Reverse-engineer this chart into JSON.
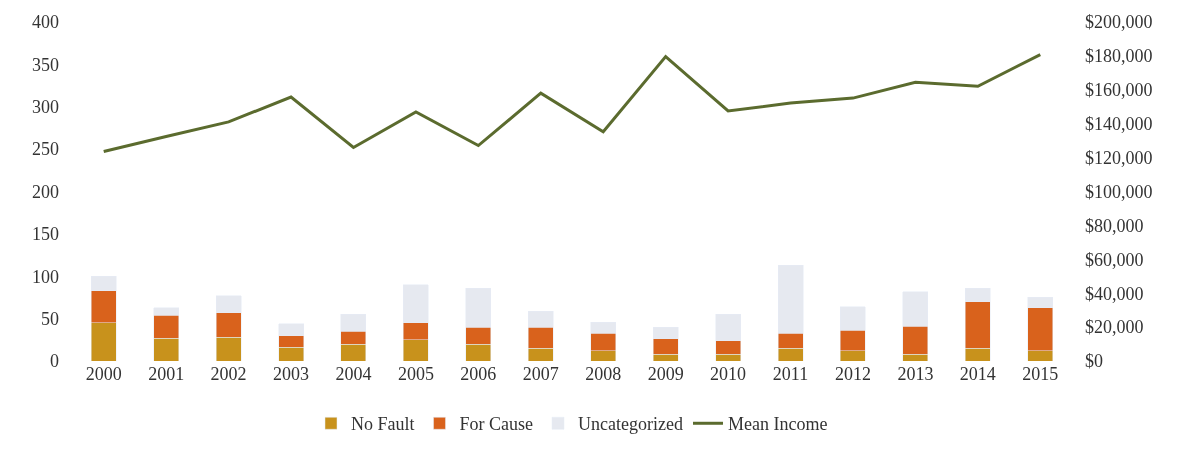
{
  "chart_data": {
    "type": "bar",
    "stacked": true,
    "legend": "bottom",
    "categories": [
      "2000",
      "2001",
      "2002",
      "2003",
      "2004",
      "2005",
      "2006",
      "2007",
      "2008",
      "2009",
      "2010",
      "2011",
      "2012",
      "2013",
      "2014",
      "2015"
    ],
    "ylim": [
      0,
      400
    ],
    "yticks": [
      0,
      50,
      100,
      150,
      200,
      250,
      300,
      350,
      400
    ],
    "y2lim": [
      0,
      200000
    ],
    "y2ticks": [
      {
        "value": 0,
        "label": "$0"
      },
      {
        "value": 20000,
        "label": "$20,000"
      },
      {
        "value": 40000,
        "label": "$40,000"
      },
      {
        "value": 60000,
        "label": "$60,000"
      },
      {
        "value": 80000,
        "label": "$80,000"
      },
      {
        "value": 100000,
        "label": "$100,000"
      },
      {
        "value": 120000,
        "label": "$120,000"
      },
      {
        "value": 140000,
        "label": "$140,000"
      },
      {
        "value": 160000,
        "label": "$160,000"
      },
      {
        "value": 180000,
        "label": "$180,000"
      },
      {
        "value": 200000,
        "label": "$200,000"
      }
    ],
    "series": [
      {
        "name": "No Fault",
        "color": "#c8921c",
        "values": [
          45,
          27,
          28,
          16,
          20,
          25,
          20,
          15,
          12,
          8,
          8,
          15,
          12,
          8,
          15,
          12
        ]
      },
      {
        "name": "For Cause",
        "color": "#d9621c",
        "values": [
          38,
          27,
          29,
          14,
          15,
          20,
          20,
          25,
          21,
          18,
          16,
          18,
          24,
          33,
          55,
          51
        ]
      },
      {
        "name": "Uncategorized",
        "color": "#e6e9f0",
        "values": [
          17,
          9,
          20,
          14,
          20,
          45,
          46,
          19,
          13,
          14,
          31,
          80,
          28,
          41,
          16,
          12
        ]
      },
      {
        "name": "Mean Income",
        "type": "line",
        "axis": "y2",
        "color": "#5b6b2e",
        "values": [
          123600,
          132400,
          141100,
          155700,
          126000,
          146900,
          127100,
          158000,
          135300,
          179600,
          147500,
          152200,
          155100,
          164400,
          162100,
          180800
        ]
      }
    ]
  }
}
